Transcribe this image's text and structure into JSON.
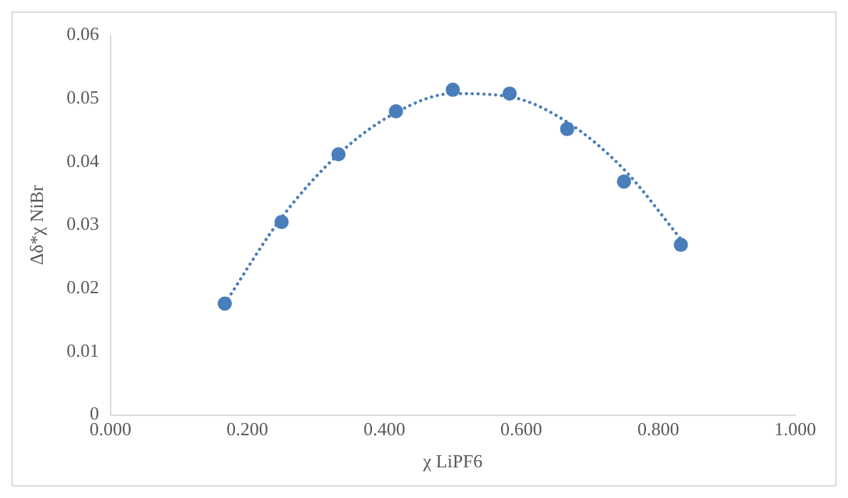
{
  "chart_data": {
    "type": "scatter",
    "xlabel": "χ LiPF6",
    "ylabel": "Δδ*χ NiBr",
    "x": [
      0.167,
      0.25,
      0.333,
      0.417,
      0.5,
      0.583,
      0.667,
      0.75,
      0.833
    ],
    "series": [
      {
        "type": "scatter",
        "color": "#4a7ebb",
        "marker": "circle",
        "values": [
          0.0176,
          0.0305,
          0.0412,
          0.048,
          0.0514,
          0.0508,
          0.0452,
          0.0369,
          0.0269
        ]
      },
      {
        "type": "line",
        "color": "#4a7ebb",
        "marker": "none",
        "line_style": "dotted",
        "x": [
          0.167,
          0.25,
          0.333,
          0.417,
          0.5,
          0.583,
          0.667,
          0.75,
          0.833
        ],
        "values": [
          0.0176,
          0.0312,
          0.0412,
          0.0478,
          0.0508,
          0.0503,
          0.0463,
          0.0388,
          0.0278
        ]
      }
    ],
    "xlim": [
      0,
      1
    ],
    "xticks": [
      {
        "value": 0,
        "label": "0.000"
      },
      {
        "value": 0.2,
        "label": "0.200"
      },
      {
        "value": 0.4,
        "label": "0.400"
      },
      {
        "value": 0.6,
        "label": "0.600"
      },
      {
        "value": 0.8,
        "label": "0.800"
      },
      {
        "value": 1,
        "label": "1.000"
      }
    ],
    "ylim": [
      0,
      0.06
    ],
    "yticks": [
      0,
      0.01,
      0.02,
      0.03,
      0.04,
      0.05,
      0.06
    ],
    "grid": false,
    "legend": false
  }
}
